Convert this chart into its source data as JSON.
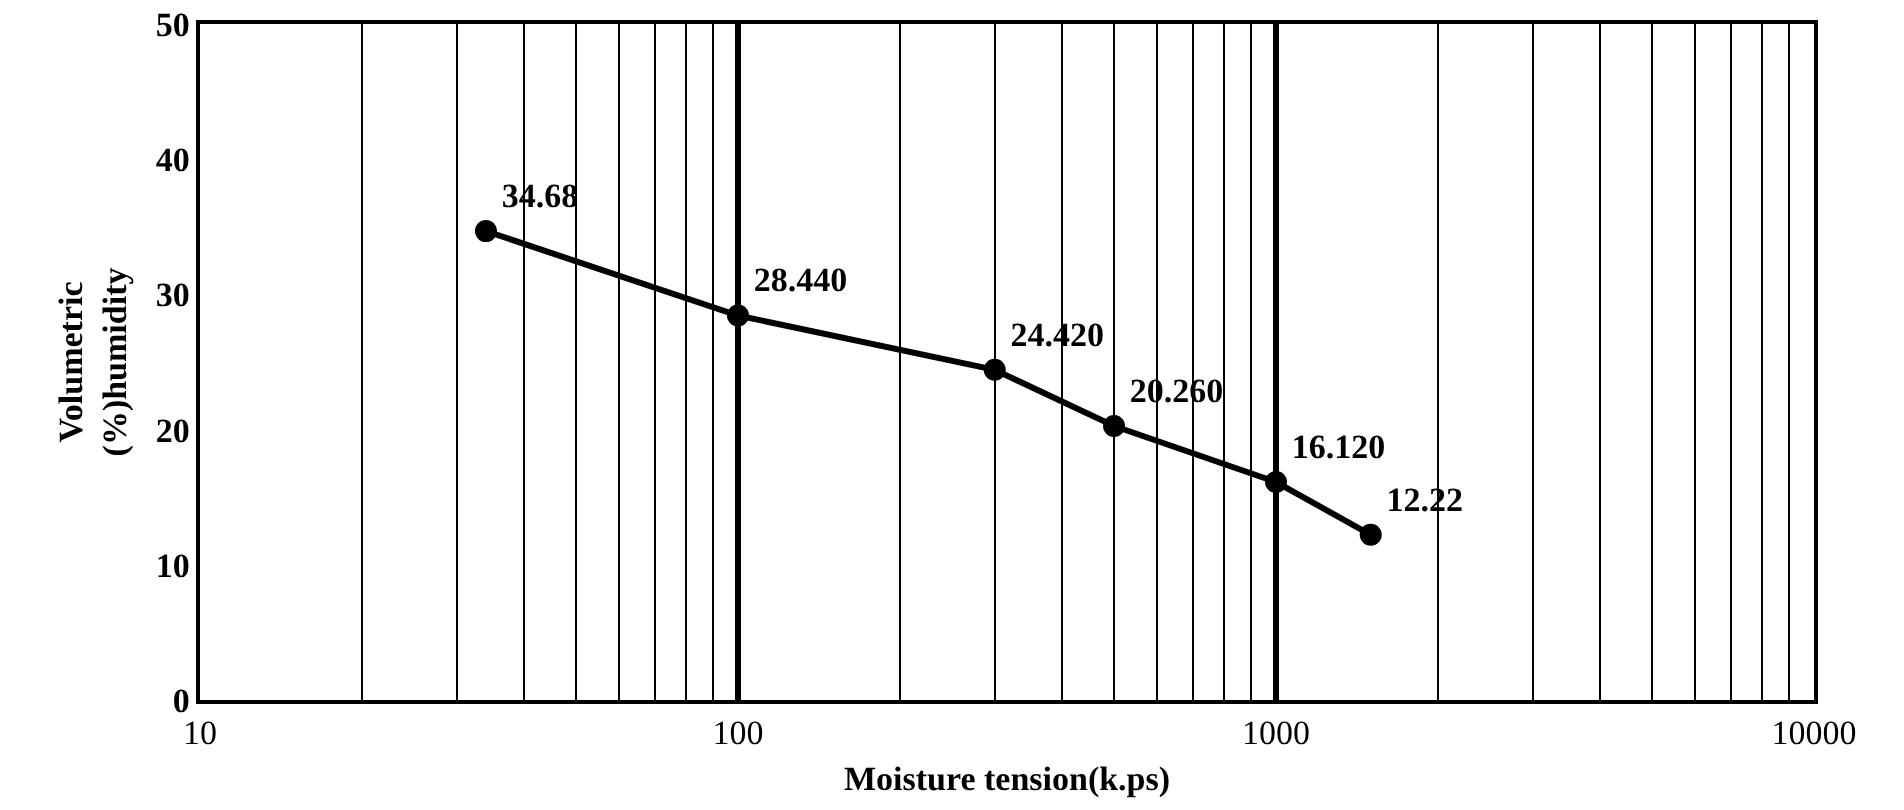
{
  "chart_data": {
    "type": "line",
    "xlabel": "Moisture tension(k.ps)",
    "ylabel": "Volumetric\n(%)humidity",
    "x": [
      34,
      100,
      300,
      500,
      1000,
      1500
    ],
    "series": [
      {
        "color": "#000000",
        "values": [
          34.68,
          28.44,
          24.42,
          20.26,
          16.12,
          12.22
        ],
        "value_labels": [
          "34.68",
          "28.440",
          "24.420",
          "20.260",
          "16.120",
          "12.22"
        ]
      }
    ],
    "log": "x",
    "xlim": [
      10,
      10000
    ],
    "xticks": [
      10,
      {
        "value": 20,
        "label": null
      },
      {
        "value": 30,
        "label": null
      },
      {
        "value": 40,
        "label": null
      },
      {
        "value": 50,
        "label": null
      },
      {
        "value": 60,
        "label": null
      },
      {
        "value": 70,
        "label": null
      },
      {
        "value": 80,
        "label": null
      },
      {
        "value": 90,
        "label": null
      },
      100,
      {
        "value": 200,
        "label": null
      },
      {
        "value": 300,
        "label": null
      },
      {
        "value": 400,
        "label": null
      },
      {
        "value": 500,
        "label": null
      },
      {
        "value": 600,
        "label": null
      },
      {
        "value": 700,
        "label": null
      },
      {
        "value": 800,
        "label": null
      },
      {
        "value": 900,
        "label": null
      },
      1000,
      {
        "value": 2000,
        "label": null
      },
      {
        "value": 3000,
        "label": null
      },
      {
        "value": 4000,
        "label": null
      },
      {
        "value": 5000,
        "label": null
      },
      {
        "value": 6000,
        "label": null
      },
      {
        "value": 7000,
        "label": null
      },
      {
        "value": 8000,
        "label": null
      },
      {
        "value": 9000,
        "label": null
      },
      10000
    ],
    "ylim": [
      0,
      50
    ],
    "yticks": [
      0,
      10,
      20,
      30,
      40,
      50
    ],
    "grid": "x",
    "marker": "circle",
    "line_style": "solid"
  }
}
